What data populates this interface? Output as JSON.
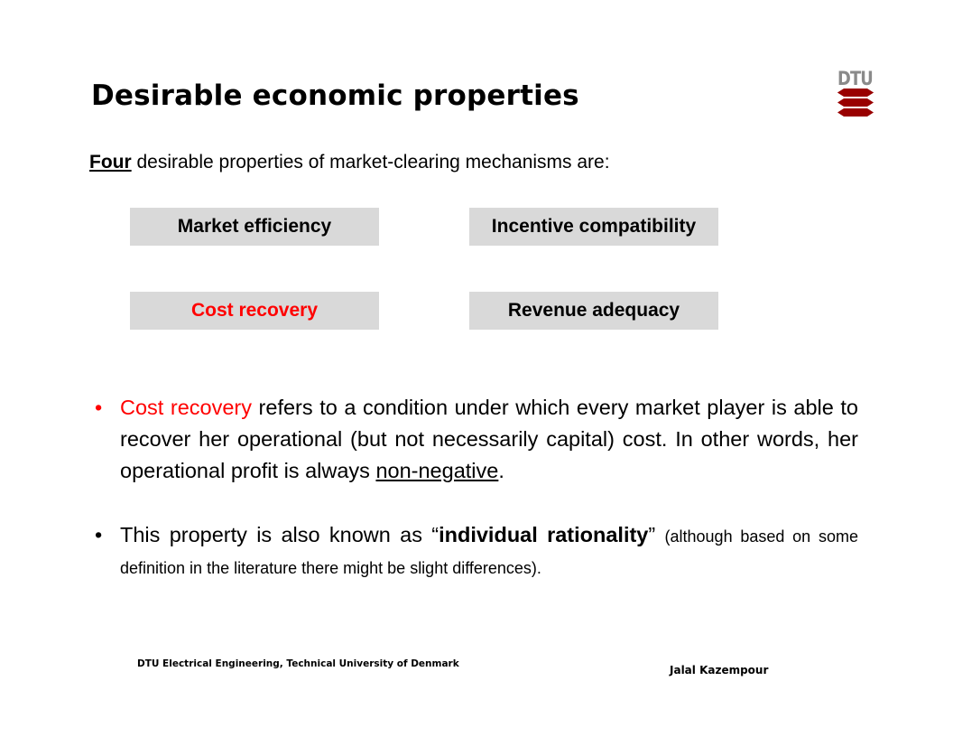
{
  "slide": {
    "title": "Desirable economic properties",
    "logo_text": "DTU",
    "brand_color": "#990000"
  },
  "intro": {
    "emphasis": "Four",
    "rest": " desirable properties of market-clearing mechanisms are:"
  },
  "properties": {
    "market_efficiency": "Market efficiency",
    "incentive_compatibility": "Incentive compatibility",
    "cost_recovery": "Cost recovery",
    "revenue_adequacy": "Revenue adequacy",
    "highlight_color": "#ff0000"
  },
  "bullet1": {
    "marker": "•",
    "term": "Cost recovery",
    "text_a": " refers to a condition under which every market player is able to recover her operational (but not necessarily capital) cost. In other words, her operational profit is always ",
    "underlined": "non-negative",
    "text_end": "."
  },
  "bullet2": {
    "marker": "•",
    "text_a": "This property is also known as “",
    "bold": "individual rationality",
    "text_b": "” ",
    "small": "(although based on some definition in the literature there might be slight differences)."
  },
  "footer": {
    "left": "DTU Electrical Engineering, Technical University of Denmark",
    "right": "Jalal Kazempour"
  }
}
